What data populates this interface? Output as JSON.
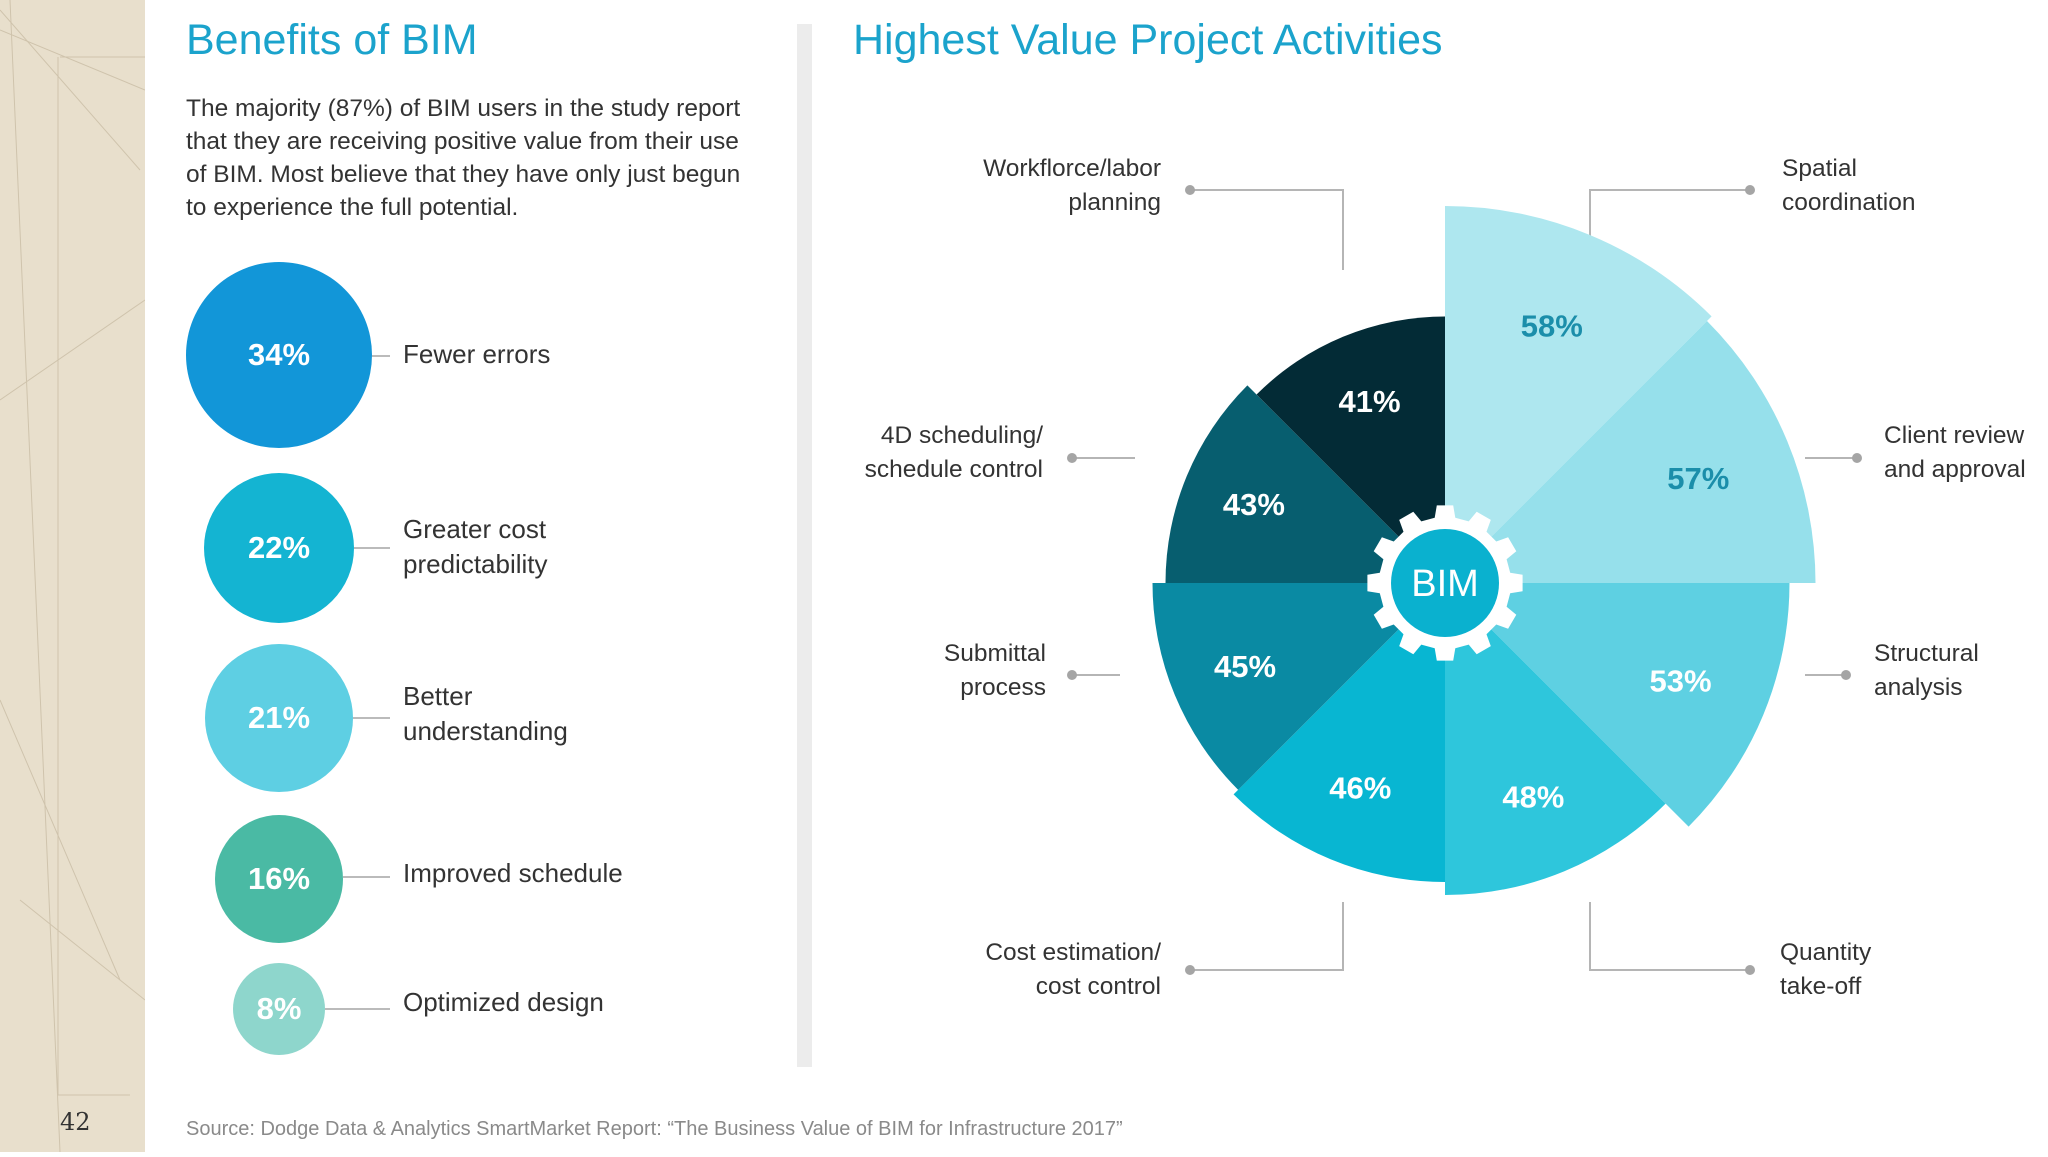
{
  "page": {
    "number": "42"
  },
  "left": {
    "title": "Benefits of BIM",
    "intro": "The majority (87%) of BIM users in the study report that they are receiving positive value from their use of BIM. Most believe that they have only just begun to experience the full potential.",
    "benefits": [
      {
        "value": "34%",
        "label": "Fewer errors",
        "color": "#1296d8"
      },
      {
        "value": "22%",
        "label": "Greater cost\npredictability",
        "color": "#14b4d2"
      },
      {
        "value": "21%",
        "label": "Better\nunderstanding",
        "color": "#5ecfe3"
      },
      {
        "value": "16%",
        "label": "Improved schedule",
        "color": "#4abaa4"
      },
      {
        "value": "8%",
        "label": "Optimized design",
        "color": "#8ed6cc"
      }
    ]
  },
  "right": {
    "title": "Highest Value Project Activities",
    "center_label": "BIM"
  },
  "chart_data": {
    "type": "pie",
    "title": "Highest Value Project Activities",
    "note": "Polar-area style chart; each of 8 equal sectors has a radius that grows with its value.",
    "categories": [
      "Spatial coordination",
      "Client review and approval",
      "Structural analysis",
      "Quantity take-off",
      "Cost estimation/ cost control",
      "Submittal process",
      "4D scheduling/ schedule control",
      "Workflorce/labor planning"
    ],
    "values": [
      58,
      57,
      53,
      48,
      46,
      45,
      43,
      41
    ],
    "value_labels": [
      "58%",
      "57%",
      "53%",
      "48%",
      "46%",
      "45%",
      "43%",
      "41%"
    ],
    "callout_labels": [
      "Spatial\ncoordination",
      "Client review\nand approval",
      "Structural\nanalysis",
      "Quantity\ntake-off",
      "Cost estimation/\ncost control",
      "Submittal\nprocess",
      "4D scheduling/\nschedule control",
      "Workflorce/labor\nplanning"
    ],
    "colors": [
      "#aee7ef",
      "#96e0eb",
      "#5ed0e2",
      "#2ec6dc",
      "#08b6d2",
      "#0a8aa3",
      "#075e6f",
      "#032b36"
    ],
    "value_label_colors": [
      "#1b8eaa",
      "#1b8eaa",
      "#ffffff",
      "#ffffff",
      "#ffffff",
      "#ffffff",
      "#ffffff",
      "#ffffff"
    ]
  },
  "footer": {
    "source": "Source: Dodge Data & Analytics SmartMarket Report: “The Business Value of BIM for Infrastructure 2017”"
  }
}
